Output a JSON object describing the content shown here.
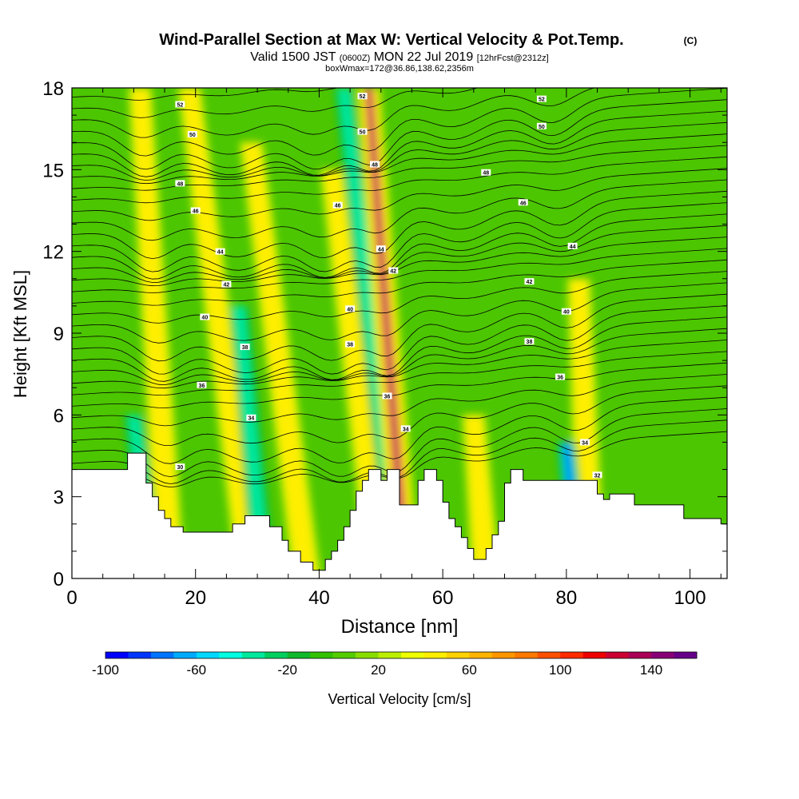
{
  "chart_data": {
    "type": "heatmap",
    "title": "Wind-Parallel Section at Max W: Vertical Velocity & Pot.Temp.",
    "title_mark": "(C)",
    "subtitle": {
      "prefix": "Valid 1500 JST",
      "zulu": "(0600Z)",
      "date": "MON 22 Jul 2019",
      "forecast": "[12hrFcst@2312z]"
    },
    "subtitle2": "boxWmax=172@36.86,138.62,2356m",
    "xlabel": "Distance [nm]",
    "ylabel": "Height [Kft MSL]",
    "xlim": [
      0,
      106
    ],
    "ylim": [
      0,
      18
    ],
    "x_ticks": [
      0,
      20,
      40,
      60,
      80,
      100
    ],
    "y_ticks": [
      0,
      3,
      6,
      9,
      12,
      15,
      18
    ],
    "grid": false,
    "colorbar": {
      "label": "Vertical Velocity [cm/s]",
      "range": [
        -100,
        160
      ],
      "tick_values": [
        -100,
        -60,
        -20,
        20,
        60,
        100,
        140
      ],
      "colors": [
        "#0000ff",
        "#0036ff",
        "#0073ff",
        "#00aaff",
        "#00d8ff",
        "#00ffe0",
        "#00e89c",
        "#00cf5e",
        "#10b92c",
        "#33c000",
        "#55cc00",
        "#88dd00",
        "#bbee00",
        "#eeff00",
        "#ffee00",
        "#ffd200",
        "#ffb400",
        "#ff9600",
        "#ff7800",
        "#ff5000",
        "#ff2a00",
        "#ee0000",
        "#cc0033",
        "#aa0055",
        "#880077",
        "#660088"
      ]
    },
    "vertical_velocity_features": [
      {
        "kind": "updraft",
        "x_surface": 16,
        "x_top": 11,
        "top_kft": 18,
        "max_cm_s": 60
      },
      {
        "kind": "downdraft",
        "x_surface": 13,
        "x_top": 10,
        "top_kft": 6,
        "min_cm_s": -50
      },
      {
        "kind": "updraft",
        "x_surface": 29,
        "x_top": 19,
        "top_kft": 18,
        "max_cm_s": 50
      },
      {
        "kind": "downdraft",
        "x_surface": 31,
        "x_top": 27,
        "top_kft": 10,
        "min_cm_s": -40
      },
      {
        "kind": "updraft",
        "x_surface": 38,
        "x_top": 29,
        "top_kft": 16,
        "max_cm_s": 60
      },
      {
        "kind": "updraft",
        "x_surface": 50,
        "x_top": 42,
        "top_kft": 15,
        "max_cm_s": 50
      },
      {
        "kind": "downdraft",
        "x_surface": 53,
        "x_top": 44,
        "top_kft": 18,
        "min_cm_s": -40
      },
      {
        "kind": "updraft",
        "x_surface": 54,
        "x_top": 48,
        "top_kft": 18,
        "max_cm_s": 172
      },
      {
        "kind": "updraft",
        "x_surface": 67,
        "x_top": 65,
        "top_kft": 6,
        "max_cm_s": 50
      },
      {
        "kind": "updraft",
        "x_surface": 84,
        "x_top": 82,
        "top_kft": 11,
        "max_cm_s": 60
      },
      {
        "kind": "downdraft",
        "x_surface": 82,
        "x_top": 80,
        "top_kft": 5,
        "min_cm_s": -90
      }
    ],
    "terrain_kft": [
      [
        0,
        4
      ],
      [
        9,
        4
      ],
      [
        9,
        4.6
      ],
      [
        12,
        4.6
      ],
      [
        12,
        3.5
      ],
      [
        13,
        3.5
      ],
      [
        13,
        3
      ],
      [
        14,
        3
      ],
      [
        14,
        2.5
      ],
      [
        15,
        2.5
      ],
      [
        15,
        2.2
      ],
      [
        16,
        2.2
      ],
      [
        16,
        1.9
      ],
      [
        18,
        1.9
      ],
      [
        18,
        1.7
      ],
      [
        26,
        1.7
      ],
      [
        26,
        2
      ],
      [
        28,
        2
      ],
      [
        28,
        2.3
      ],
      [
        32,
        2.3
      ],
      [
        32,
        1.9
      ],
      [
        34,
        1.9
      ],
      [
        34,
        1.4
      ],
      [
        35,
        1.4
      ],
      [
        35,
        1
      ],
      [
        37,
        1
      ],
      [
        37,
        0.6
      ],
      [
        39,
        0.6
      ],
      [
        39,
        0.3
      ],
      [
        41,
        0.3
      ],
      [
        41,
        0.7
      ],
      [
        42,
        0.7
      ],
      [
        42,
        1
      ],
      [
        43,
        1
      ],
      [
        43,
        1.4
      ],
      [
        44,
        1.4
      ],
      [
        44,
        1.9
      ],
      [
        45,
        1.9
      ],
      [
        45,
        2.5
      ],
      [
        46,
        2.5
      ],
      [
        46,
        3.2
      ],
      [
        47,
        3.2
      ],
      [
        47,
        3.6
      ],
      [
        48,
        3.6
      ],
      [
        48,
        4
      ],
      [
        50,
        4
      ],
      [
        50,
        3.6
      ],
      [
        51,
        3.6
      ],
      [
        51,
        4
      ],
      [
        53,
        4
      ],
      [
        53,
        2.7
      ],
      [
        56,
        2.7
      ],
      [
        56,
        3.6
      ],
      [
        57,
        3.6
      ],
      [
        57,
        4
      ],
      [
        59,
        4
      ],
      [
        59,
        3.6
      ],
      [
        60,
        3.6
      ],
      [
        60,
        2.8
      ],
      [
        61,
        2.8
      ],
      [
        61,
        2.2
      ],
      [
        62,
        2.2
      ],
      [
        62,
        1.9
      ],
      [
        63,
        1.9
      ],
      [
        63,
        1.5
      ],
      [
        64,
        1.5
      ],
      [
        64,
        1.1
      ],
      [
        65,
        1.1
      ],
      [
        65,
        0.7
      ],
      [
        67,
        0.7
      ],
      [
        67,
        1.1
      ],
      [
        68,
        1.1
      ],
      [
        68,
        1.6
      ],
      [
        69,
        1.6
      ],
      [
        69,
        2.1
      ],
      [
        70,
        2.1
      ],
      [
        70,
        3.5
      ],
      [
        71,
        3.5
      ],
      [
        71,
        4
      ],
      [
        73,
        4
      ],
      [
        73,
        3.6
      ],
      [
        85,
        3.6
      ],
      [
        85,
        3.1
      ],
      [
        86,
        3.1
      ],
      [
        86,
        2.9
      ],
      [
        87,
        2.9
      ],
      [
        87,
        3.1
      ],
      [
        91,
        3.1
      ],
      [
        91,
        2.7
      ],
      [
        99,
        2.7
      ],
      [
        99,
        2.2
      ],
      [
        105,
        2.2
      ],
      [
        105,
        2
      ],
      [
        106,
        2
      ]
    ],
    "theta_contour_labels": [
      {
        "x": 17.5,
        "y": 4.1,
        "label": "30"
      },
      {
        "x": 29,
        "y": 5.9,
        "label": "34"
      },
      {
        "x": 54,
        "y": 5.5,
        "label": "34"
      },
      {
        "x": 83,
        "y": 5.0,
        "label": "34"
      },
      {
        "x": 85,
        "y": 3.8,
        "label": "32"
      },
      {
        "x": 21,
        "y": 7.1,
        "label": "36"
      },
      {
        "x": 51,
        "y": 6.7,
        "label": "36"
      },
      {
        "x": 79,
        "y": 7.4,
        "label": "36"
      },
      {
        "x": 28,
        "y": 8.5,
        "label": "38"
      },
      {
        "x": 45,
        "y": 8.6,
        "label": "38"
      },
      {
        "x": 74,
        "y": 8.7,
        "label": "38"
      },
      {
        "x": 21.5,
        "y": 9.6,
        "label": "40"
      },
      {
        "x": 45,
        "y": 9.9,
        "label": "40"
      },
      {
        "x": 80,
        "y": 9.8,
        "label": "40"
      },
      {
        "x": 25,
        "y": 10.8,
        "label": "42"
      },
      {
        "x": 52,
        "y": 11.3,
        "label": "42"
      },
      {
        "x": 74,
        "y": 10.9,
        "label": "42"
      },
      {
        "x": 24,
        "y": 12,
        "label": "44"
      },
      {
        "x": 50,
        "y": 12.1,
        "label": "44"
      },
      {
        "x": 81,
        "y": 12.2,
        "label": "44"
      },
      {
        "x": 20,
        "y": 13.5,
        "label": "46"
      },
      {
        "x": 43,
        "y": 13.7,
        "label": "46"
      },
      {
        "x": 73,
        "y": 13.8,
        "label": "46"
      },
      {
        "x": 17.5,
        "y": 14.5,
        "label": "48"
      },
      {
        "x": 49,
        "y": 15.2,
        "label": "48"
      },
      {
        "x": 67,
        "y": 14.9,
        "label": "48"
      },
      {
        "x": 19.5,
        "y": 16.3,
        "label": "50"
      },
      {
        "x": 47,
        "y": 16.4,
        "label": "50"
      },
      {
        "x": 76,
        "y": 16.6,
        "label": "50"
      },
      {
        "x": 17.5,
        "y": 17.4,
        "label": "52"
      },
      {
        "x": 47,
        "y": 17.7,
        "label": "52"
      },
      {
        "x": 76,
        "y": 17.6,
        "label": "52"
      }
    ]
  }
}
